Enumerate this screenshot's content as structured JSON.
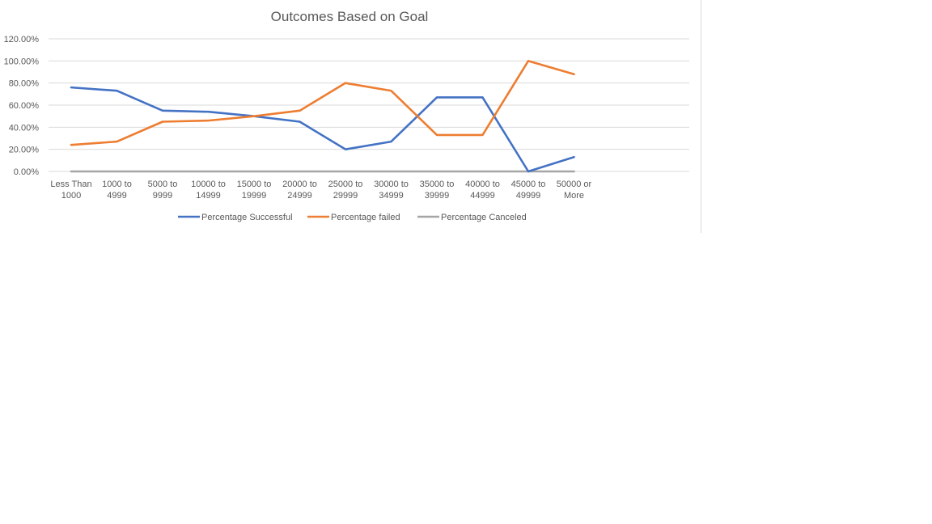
{
  "chart_data": {
    "type": "line",
    "title": "Outcomes Based on Goal",
    "xlabel": "",
    "ylabel": "",
    "ylim": [
      0,
      1.2
    ],
    "y_ticks": [
      "0.00%",
      "20.00%",
      "40.00%",
      "60.00%",
      "80.00%",
      "100.00%",
      "120.00%"
    ],
    "grid": true,
    "legend_position": "bottom",
    "categories": [
      [
        "Less Than",
        "1000"
      ],
      [
        "1000 to",
        "4999"
      ],
      [
        "5000 to",
        "9999"
      ],
      [
        "10000 to",
        "14999"
      ],
      [
        "15000 to",
        "19999"
      ],
      [
        "20000 to",
        "24999"
      ],
      [
        "25000 to",
        "29999"
      ],
      [
        "30000 to",
        "34999"
      ],
      [
        "35000 to",
        "39999"
      ],
      [
        "40000 to",
        "44999"
      ],
      [
        "45000 to",
        "49999"
      ],
      [
        "50000 or",
        "More"
      ]
    ],
    "series": [
      {
        "name": "Percentage Successful",
        "color": "#4472c4",
        "values": [
          0.76,
          0.73,
          0.55,
          0.54,
          0.5,
          0.45,
          0.2,
          0.27,
          0.67,
          0.67,
          0.0,
          0.13
        ]
      },
      {
        "name": "Percentage failed",
        "color": "#ed7d31",
        "values": [
          0.24,
          0.27,
          0.45,
          0.46,
          0.5,
          0.55,
          0.8,
          0.73,
          0.33,
          0.33,
          1.0,
          0.88
        ]
      },
      {
        "name": "Percentage Canceled",
        "color": "#a5a5a5",
        "values": [
          0,
          0,
          0,
          0,
          0,
          0,
          0,
          0,
          0,
          0,
          0,
          0
        ]
      }
    ]
  }
}
